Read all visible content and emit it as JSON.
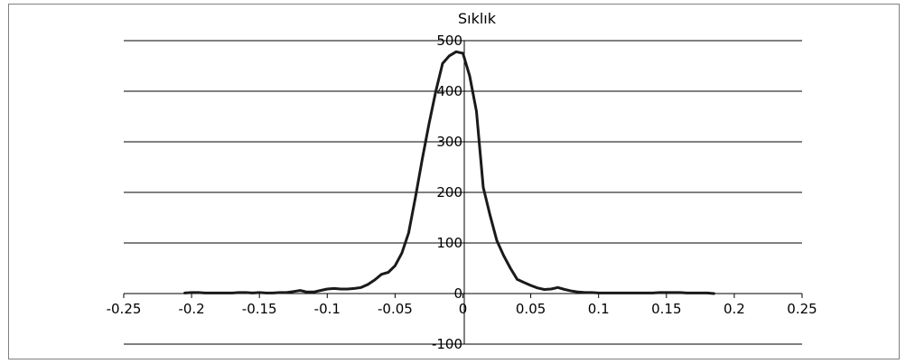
{
  "chart_data": {
    "type": "line",
    "title": "Sıklık",
    "xlabel": "",
    "ylabel": "",
    "xlim": [
      -0.25,
      0.25
    ],
    "ylim": [
      -100,
      500
    ],
    "x_ticks": [
      -0.25,
      -0.2,
      -0.15,
      -0.1,
      -0.05,
      0,
      0.05,
      0.1,
      0.15,
      0.2,
      0.25
    ],
    "x_tick_labels": [
      "-0.25",
      "-0.2",
      "-0.15",
      "-0.1",
      "-0.05",
      "0",
      "0.05",
      "0.1",
      "0.15",
      "0.2",
      "0.25"
    ],
    "y_ticks": [
      -100,
      0,
      100,
      200,
      300,
      400,
      500
    ],
    "y_tick_labels": [
      "-100",
      "0",
      "100",
      "200",
      "300",
      "400",
      "500"
    ],
    "grid": "horizontal",
    "legend": "none",
    "line_color": "#1a1a1a",
    "series": [
      {
        "x": [
          -0.205,
          -0.2,
          -0.195,
          -0.19,
          -0.185,
          -0.18,
          -0.175,
          -0.17,
          -0.165,
          -0.16,
          -0.155,
          -0.15,
          -0.145,
          -0.14,
          -0.135,
          -0.13,
          -0.125,
          -0.12,
          -0.115,
          -0.11,
          -0.105,
          -0.1,
          -0.095,
          -0.09,
          -0.085,
          -0.08,
          -0.075,
          -0.07,
          -0.065,
          -0.06,
          -0.055,
          -0.05,
          -0.045,
          -0.04,
          -0.035,
          -0.03,
          -0.025,
          -0.02,
          -0.015,
          -0.01,
          -0.005,
          0,
          0.005,
          0.01,
          0.015,
          0.02,
          0.025,
          0.03,
          0.035,
          0.04,
          0.045,
          0.05,
          0.055,
          0.06,
          0.065,
          0.07,
          0.075,
          0.08,
          0.085,
          0.09,
          0.095,
          0.1,
          0.105,
          0.11,
          0.115,
          0.12,
          0.125,
          0.13,
          0.135,
          0.14,
          0.145,
          0.15,
          0.155,
          0.16,
          0.165,
          0.17,
          0.175,
          0.18,
          0.185
        ],
        "values": [
          1,
          2,
          2,
          1,
          1,
          1,
          1,
          1,
          2,
          2,
          1,
          2,
          1,
          1,
          2,
          2,
          4,
          6,
          3,
          3,
          6,
          9,
          10,
          9,
          9,
          10,
          12,
          18,
          27,
          38,
          42,
          55,
          80,
          120,
          190,
          265,
          335,
          400,
          455,
          470,
          478,
          475,
          430,
          360,
          210,
          155,
          105,
          75,
          50,
          28,
          22,
          16,
          11,
          8,
          9,
          12,
          8,
          5,
          3,
          2,
          2,
          1,
          1,
          1,
          1,
          1,
          1,
          1,
          1,
          1,
          2,
          2,
          2,
          2,
          1,
          1,
          1,
          1,
          0
        ]
      }
    ]
  }
}
